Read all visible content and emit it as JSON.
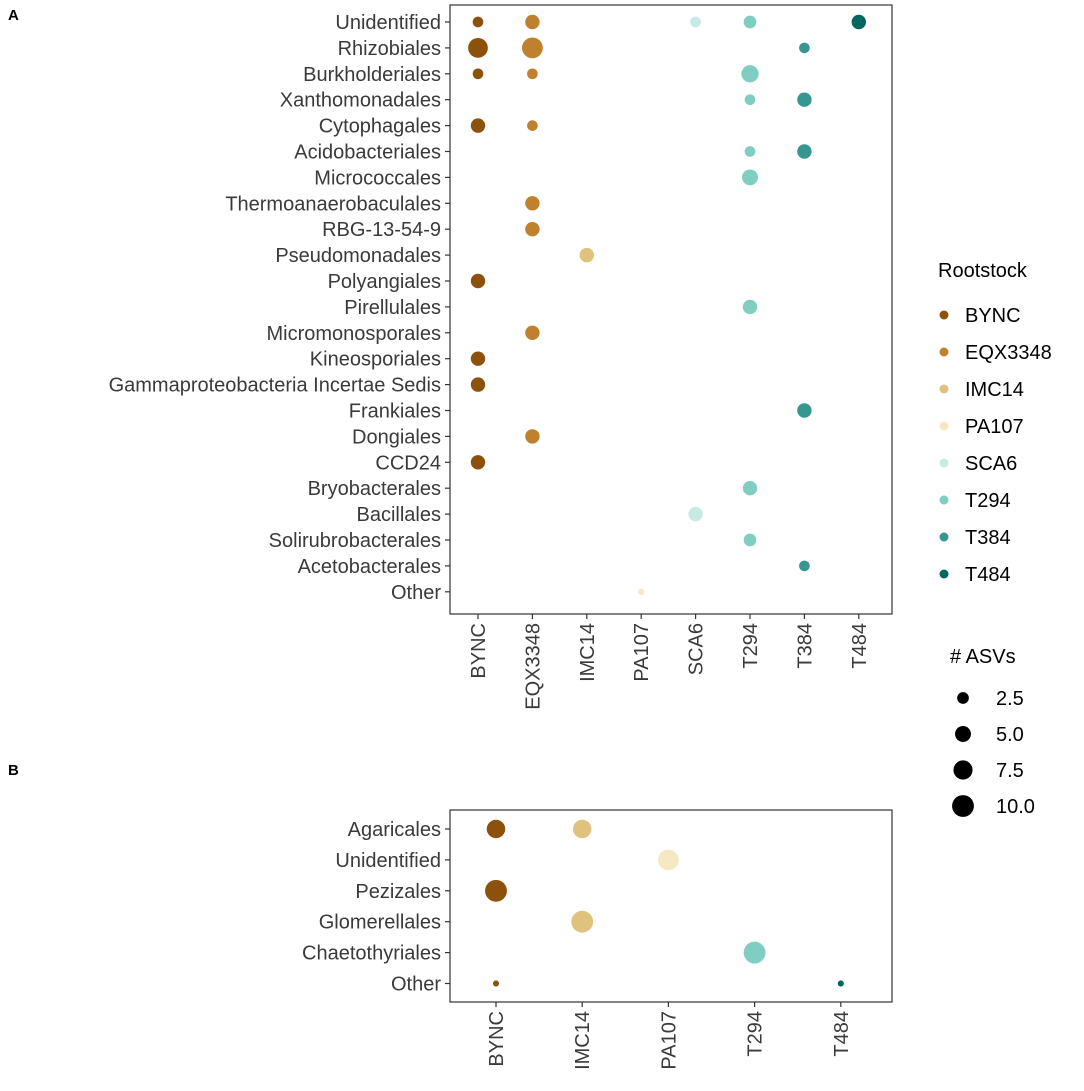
{
  "colors": {
    "BYNC": "#8c510a",
    "EQX3348": "#bf812d",
    "IMC14": "#dfc27d",
    "PA107": "#f6e8c3",
    "SCA6": "#c7eae5",
    "T294": "#80cdc1",
    "T384": "#35978f",
    "T484": "#01665e"
  },
  "legend": {
    "color_title": "Rootstock",
    "color_items": [
      "BYNC",
      "EQX3348",
      "IMC14",
      "PA107",
      "SCA6",
      "T294",
      "T384",
      "T484"
    ],
    "size_title": "# ASVs",
    "size_items": [
      2.5,
      5.0,
      7.5,
      10.0
    ],
    "size_labels": [
      "2.5",
      "5.0",
      "7.5",
      "10.0"
    ]
  },
  "chart_data": [
    {
      "panel": "A",
      "type": "scatter",
      "title": "",
      "xlabel": "",
      "ylabel": "",
      "categories_x": [
        "BYNC",
        "EQX3348",
        "IMC14",
        "PA107",
        "SCA6",
        "T294",
        "T384",
        "T484"
      ],
      "categories_y": [
        "Unidentified",
        "Rhizobiales",
        "Burkholderiales",
        "Xanthomonadales",
        "Cytophagales",
        "Acidobacteriales",
        "Micrococcales",
        "Thermoanaerobaculales",
        "RBG-13-54-9",
        "Pseudomonadales",
        "Polyangiales",
        "Pirellulales",
        "Micromonosporales",
        "Kineosporiales",
        "Gammaproteobacteria Incertae Sedis",
        "Frankiales",
        "Dongiales",
        "CCD24",
        "Bryobacterales",
        "Bacillales",
        "Solirubrobacterales",
        "Acetobacterales",
        "Other"
      ],
      "points": [
        {
          "x": "BYNC",
          "y": "Unidentified",
          "size": 2
        },
        {
          "x": "EQX3348",
          "y": "Unidentified",
          "size": 4
        },
        {
          "x": "SCA6",
          "y": "Unidentified",
          "size": 2
        },
        {
          "x": "T294",
          "y": "Unidentified",
          "size": 3
        },
        {
          "x": "T484",
          "y": "Unidentified",
          "size": 4
        },
        {
          "x": "BYNC",
          "y": "Rhizobiales",
          "size": 8
        },
        {
          "x": "EQX3348",
          "y": "Rhizobiales",
          "size": 9
        },
        {
          "x": "T384",
          "y": "Rhizobiales",
          "size": 2
        },
        {
          "x": "BYNC",
          "y": "Burkholderiales",
          "size": 2
        },
        {
          "x": "EQX3348",
          "y": "Burkholderiales",
          "size": 2
        },
        {
          "x": "T294",
          "y": "Burkholderiales",
          "size": 6
        },
        {
          "x": "T294",
          "y": "Xanthomonadales",
          "size": 2
        },
        {
          "x": "T384",
          "y": "Xanthomonadales",
          "size": 4
        },
        {
          "x": "BYNC",
          "y": "Cytophagales",
          "size": 4
        },
        {
          "x": "EQX3348",
          "y": "Cytophagales",
          "size": 2
        },
        {
          "x": "T294",
          "y": "Acidobacteriales",
          "size": 2
        },
        {
          "x": "T384",
          "y": "Acidobacteriales",
          "size": 4
        },
        {
          "x": "T294",
          "y": "Micrococcales",
          "size": 5
        },
        {
          "x": "EQX3348",
          "y": "Thermoanaerobaculales",
          "size": 4
        },
        {
          "x": "EQX3348",
          "y": "RBG-13-54-9",
          "size": 4
        },
        {
          "x": "IMC14",
          "y": "Pseudomonadales",
          "size": 4
        },
        {
          "x": "BYNC",
          "y": "Polyangiales",
          "size": 4
        },
        {
          "x": "T294",
          "y": "Pirellulales",
          "size": 4
        },
        {
          "x": "EQX3348",
          "y": "Micromonosporales",
          "size": 4
        },
        {
          "x": "BYNC",
          "y": "Kineosporiales",
          "size": 4
        },
        {
          "x": "BYNC",
          "y": "Gammaproteobacteria Incertae Sedis",
          "size": 4
        },
        {
          "x": "T384",
          "y": "Frankiales",
          "size": 4
        },
        {
          "x": "EQX3348",
          "y": "Dongiales",
          "size": 4
        },
        {
          "x": "BYNC",
          "y": "CCD24",
          "size": 4
        },
        {
          "x": "T294",
          "y": "Bryobacterales",
          "size": 4
        },
        {
          "x": "SCA6",
          "y": "Bacillales",
          "size": 4
        },
        {
          "x": "T294",
          "y": "Solirubrobacterales",
          "size": 3
        },
        {
          "x": "T384",
          "y": "Acetobacterales",
          "size": 2
        },
        {
          "x": "PA107",
          "y": "Other",
          "size": 0.5
        }
      ]
    },
    {
      "panel": "B",
      "type": "scatter",
      "title": "",
      "xlabel": "",
      "ylabel": "",
      "categories_x": [
        "BYNC",
        "IMC14",
        "PA107",
        "T294",
        "T484"
      ],
      "categories_y": [
        "Agaricales",
        "Unidentified",
        "Pezizales",
        "Glomerellales",
        "Chaetothyriales",
        "Other"
      ],
      "points": [
        {
          "x": "BYNC",
          "y": "Agaricales",
          "size": 7
        },
        {
          "x": "IMC14",
          "y": "Agaricales",
          "size": 7
        },
        {
          "x": "PA107",
          "y": "Unidentified",
          "size": 9
        },
        {
          "x": "BYNC",
          "y": "Pezizales",
          "size": 10
        },
        {
          "x": "IMC14",
          "y": "Glomerellales",
          "size": 10
        },
        {
          "x": "T294",
          "y": "Chaetothyriales",
          "size": 10
        },
        {
          "x": "BYNC",
          "y": "Other",
          "size": 0.5
        },
        {
          "x": "T484",
          "y": "Other",
          "size": 0.5
        }
      ]
    }
  ]
}
